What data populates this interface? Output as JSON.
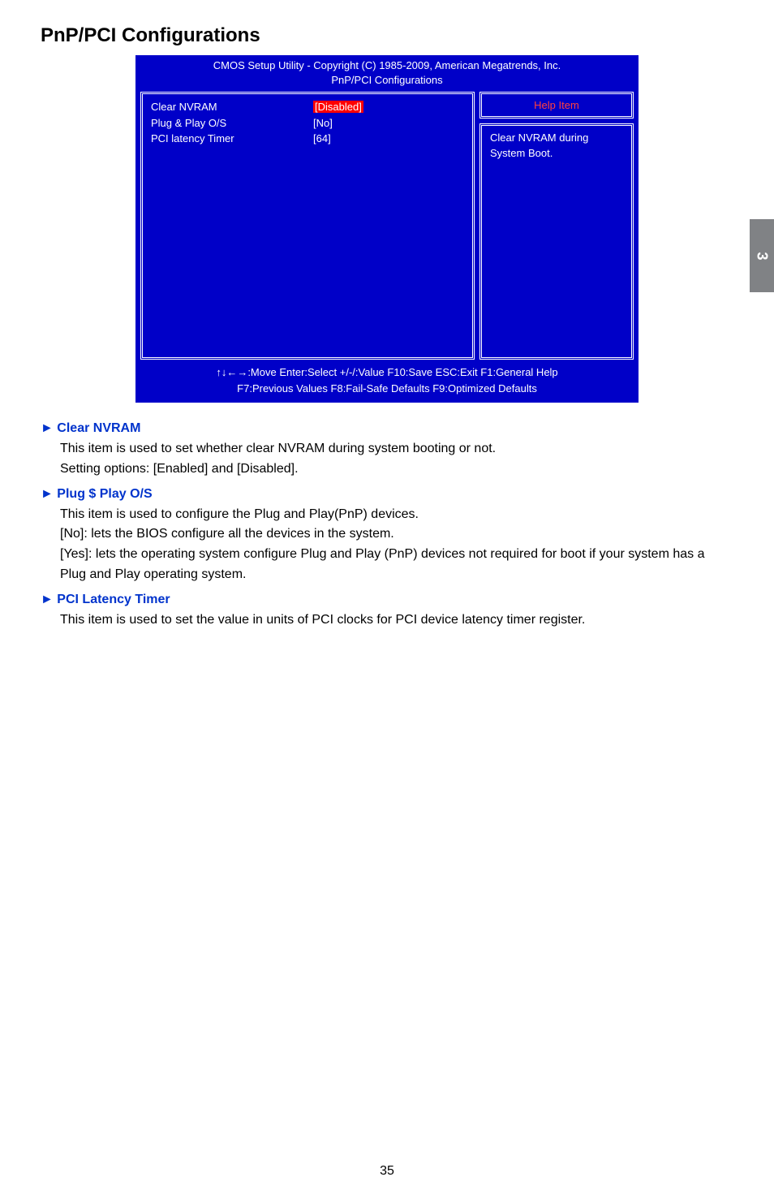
{
  "page": {
    "title": "PnP/PCI Configurations",
    "number": "35",
    "side_tab": "3"
  },
  "bios": {
    "header_line1": "CMOS Setup Utility - Copyright (C) 1985-2009, American Megatrends, Inc.",
    "header_line2": "PnP/PCI Configurations",
    "rows": [
      {
        "label": "Clear NVRAM",
        "value": "[Disabled]",
        "highlighted": true
      },
      {
        "label": "Plug & Play O/S",
        "value": "[No]",
        "highlighted": false
      },
      {
        "label": "PCI latency Timer",
        "value": "[64]",
        "highlighted": false
      }
    ],
    "help_title": "Help Item",
    "help_text": "Clear NVRAM during System Boot.",
    "footer_line1": "↑↓←→:Move  Enter:Select    +/-/:Value    F10:Save   ESC:Exit      F1:General Help",
    "footer_line2": "F7:Previous Values        F8:Fail-Safe Defaults          F9:Optimized Defaults",
    "colors": {
      "background": "#0000c8",
      "text": "#ffffff",
      "highlight": "#ff0000",
      "help_title_color": "#ff4040"
    }
  },
  "items": [
    {
      "triangle": "►",
      "title": "Clear NVRAM",
      "lines": [
        "This item is used to set whether clear NVRAM during system booting or not.",
        "Setting options: [Enabled] and [Disabled]."
      ]
    },
    {
      "triangle": "►",
      "title": "Plug $ Play O/S",
      "lines": [
        "This item is used to configure the Plug and Play(PnP) devices.",
        "[No]: lets the BIOS configure all the devices in the system.",
        "[Yes]: lets the operating system configure Plug and Play (PnP) devices not required for boot if your system has a Plug and Play operating system."
      ]
    },
    {
      "triangle": "►",
      "title": "PCI Latency Timer",
      "lines": [
        "This item is used to set the value in units of PCI clocks for PCI device latency timer register."
      ]
    }
  ]
}
